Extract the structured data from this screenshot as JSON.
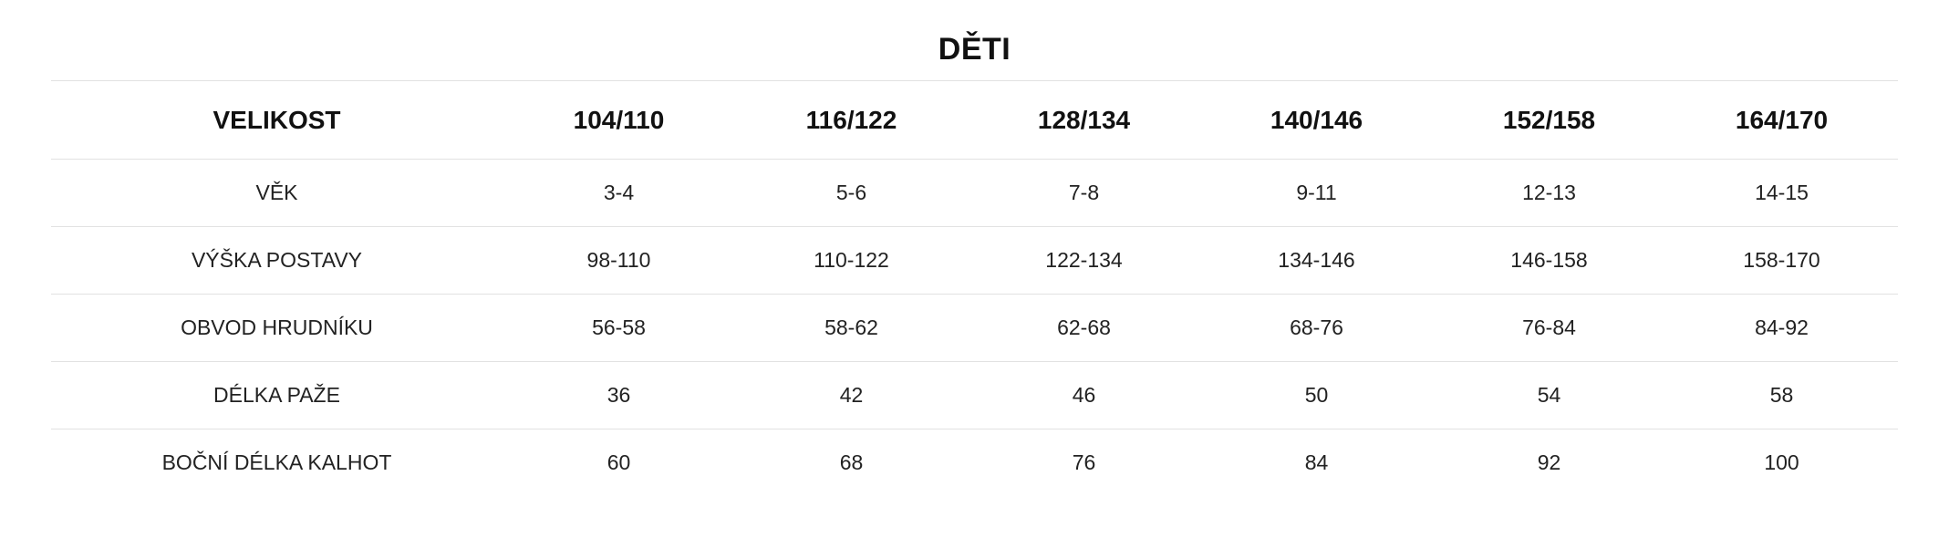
{
  "title": "DĚTI",
  "header": {
    "label": "VELIKOST",
    "sizes": [
      "104/110",
      "116/122",
      "128/134",
      "140/146",
      "152/158",
      "164/170"
    ]
  },
  "rows": [
    {
      "label": "VĚK",
      "values": [
        "3-4",
        "5-6",
        "7-8",
        "9-11",
        "12-13",
        "14-15"
      ]
    },
    {
      "label": "VÝŠKA POSTAVY",
      "values": [
        "98-110",
        "110-122",
        "122-134",
        "134-146",
        "146-158",
        "158-170"
      ]
    },
    {
      "label": "OBVOD HRUDNÍKU",
      "values": [
        "56-58",
        "58-62",
        "62-68",
        "68-76",
        "76-84",
        "84-92"
      ]
    },
    {
      "label": "DÉLKA PAŽE",
      "values": [
        "36",
        "42",
        "46",
        "50",
        "54",
        "58"
      ]
    },
    {
      "label": "BOČNÍ DÉLKA KALHOT",
      "values": [
        "60",
        "68",
        "76",
        "84",
        "92",
        "100"
      ]
    }
  ]
}
